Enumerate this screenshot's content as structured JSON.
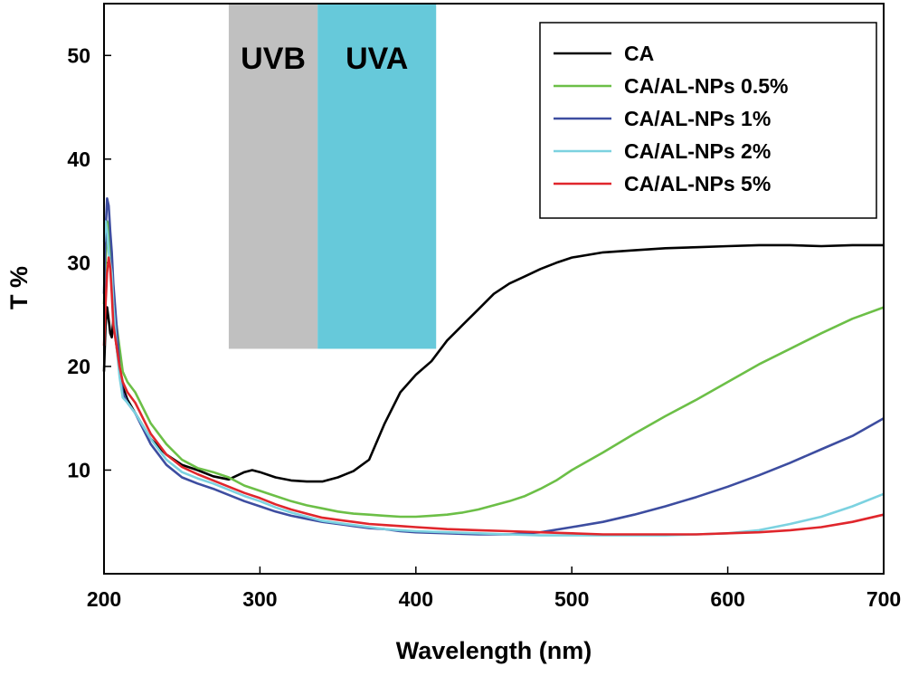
{
  "chart_data": {
    "type": "line",
    "title": "",
    "xlabel": "Wavelength (nm)",
    "ylabel": "T  %",
    "xlim": [
      200,
      700
    ],
    "ylim": [
      0,
      55
    ],
    "xticks": [
      200,
      300,
      400,
      500,
      600,
      700
    ],
    "yticks": [
      10,
      20,
      30,
      40,
      50
    ],
    "legend_position": "top-right",
    "bands": [
      {
        "label": "UVB",
        "x_start": 280,
        "x_end": 337,
        "y_start": 21.7,
        "y_end": 55,
        "color": "#c0c0c0"
      },
      {
        "label": "UVA",
        "x_start": 337,
        "x_end": 413,
        "y_start": 21.7,
        "y_end": 55,
        "color": "#66c9da"
      }
    ],
    "series": [
      {
        "name": "CA",
        "color": "#000000",
        "x": [
          200,
          201,
          202,
          203,
          204,
          205,
          206,
          208,
          210,
          212,
          215,
          220,
          230,
          240,
          250,
          260,
          270,
          280,
          290,
          295,
          300,
          310,
          320,
          330,
          340,
          350,
          360,
          370,
          380,
          390,
          400,
          410,
          420,
          430,
          440,
          450,
          460,
          470,
          480,
          490,
          500,
          520,
          540,
          560,
          580,
          600,
          620,
          640,
          660,
          680,
          700
        ],
        "y": [
          19.5,
          24,
          25.7,
          24.5,
          23.2,
          22.8,
          24.5,
          22,
          19.6,
          18,
          16.8,
          15.5,
          13,
          11.5,
          10.5,
          10,
          9.4,
          9.1,
          9.8,
          10,
          9.8,
          9.3,
          9,
          8.9,
          8.9,
          9.3,
          9.9,
          11,
          14.5,
          17.5,
          19.2,
          20.5,
          22.5,
          24,
          25.5,
          27,
          28,
          28.7,
          29.4,
          30,
          30.5,
          31,
          31.2,
          31.4,
          31.5,
          31.6,
          31.7,
          31.7,
          31.6,
          31.7,
          31.7
        ]
      },
      {
        "name": "CA/AL-NPs 0.5%",
        "color": "#6cbf47",
        "x": [
          200,
          201,
          202,
          203,
          204,
          205,
          206,
          208,
          210,
          212,
          215,
          220,
          230,
          240,
          250,
          260,
          270,
          280,
          290,
          300,
          310,
          320,
          330,
          340,
          350,
          360,
          370,
          380,
          390,
          400,
          410,
          420,
          430,
          440,
          450,
          460,
          470,
          480,
          490,
          500,
          520,
          540,
          560,
          580,
          600,
          620,
          640,
          660,
          680,
          700
        ],
        "y": [
          26,
          30,
          34,
          33.5,
          31.5,
          30,
          26,
          24,
          21.8,
          19.5,
          18.5,
          17.5,
          14.5,
          12.5,
          11,
          10.2,
          9.8,
          9.3,
          8.5,
          8,
          7.5,
          7,
          6.6,
          6.3,
          6,
          5.8,
          5.7,
          5.6,
          5.5,
          5.5,
          5.6,
          5.7,
          5.9,
          6.2,
          6.6,
          7,
          7.5,
          8.2,
          9,
          10,
          11.7,
          13.5,
          15.2,
          16.8,
          18.5,
          20.2,
          21.7,
          23.2,
          24.6,
          25.7
        ]
      },
      {
        "name": "CA/AL-NPs 1%",
        "color": "#3d4da0",
        "x": [
          200,
          201,
          202,
          203,
          204,
          205,
          206,
          208,
          210,
          212,
          215,
          220,
          230,
          240,
          250,
          260,
          270,
          280,
          290,
          300,
          310,
          320,
          330,
          340,
          350,
          360,
          370,
          380,
          390,
          400,
          420,
          440,
          460,
          480,
          500,
          520,
          540,
          560,
          580,
          600,
          620,
          640,
          660,
          680,
          700
        ],
        "y": [
          27,
          33,
          36.2,
          35.5,
          33,
          31,
          28,
          24,
          20,
          17.5,
          16.5,
          15.5,
          12.5,
          10.5,
          9.3,
          8.7,
          8.2,
          7.6,
          7,
          6.5,
          6,
          5.6,
          5.3,
          5,
          4.8,
          4.6,
          4.4,
          4.3,
          4.1,
          4,
          3.9,
          3.8,
          3.8,
          4,
          4.5,
          5,
          5.7,
          6.5,
          7.4,
          8.4,
          9.5,
          10.7,
          12,
          13.3,
          15
        ]
      },
      {
        "name": "CA/AL-NPs 2%",
        "color": "#7cd2e0",
        "x": [
          200,
          201,
          202,
          203,
          204,
          205,
          206,
          208,
          210,
          212,
          215,
          220,
          230,
          240,
          250,
          260,
          270,
          280,
          290,
          300,
          310,
          320,
          330,
          340,
          350,
          360,
          370,
          380,
          390,
          400,
          420,
          440,
          460,
          480,
          500,
          520,
          540,
          560,
          580,
          600,
          620,
          640,
          660,
          680,
          700
        ],
        "y": [
          32,
          34,
          33,
          31,
          30,
          29,
          26,
          22,
          19,
          17,
          16.5,
          15.5,
          13,
          11,
          9.8,
          9.2,
          8.7,
          8.1,
          7.5,
          7,
          6.4,
          5.9,
          5.5,
          5.1,
          4.9,
          4.7,
          4.5,
          4.3,
          4.2,
          4.1,
          4,
          3.9,
          3.8,
          3.7,
          3.7,
          3.7,
          3.7,
          3.7,
          3.8,
          3.9,
          4.2,
          4.8,
          5.5,
          6.5,
          7.7
        ]
      },
      {
        "name": "CA/AL-NPs 5%",
        "color": "#e0262c",
        "x": [
          200,
          201,
          202,
          203,
          204,
          205,
          206,
          208,
          210,
          212,
          215,
          220,
          230,
          240,
          250,
          260,
          270,
          280,
          290,
          300,
          310,
          320,
          330,
          340,
          350,
          360,
          370,
          380,
          390,
          400,
          420,
          440,
          460,
          480,
          500,
          520,
          540,
          560,
          580,
          600,
          620,
          640,
          660,
          680,
          700
        ],
        "y": [
          22,
          26,
          29,
          30.5,
          29.5,
          27,
          24,
          22,
          20,
          18.5,
          17.5,
          16.5,
          13.5,
          11.5,
          10.3,
          9.6,
          9,
          8.4,
          7.8,
          7.3,
          6.7,
          6.2,
          5.8,
          5.4,
          5.2,
          5,
          4.8,
          4.7,
          4.6,
          4.5,
          4.3,
          4.2,
          4.1,
          4,
          3.9,
          3.8,
          3.8,
          3.8,
          3.8,
          3.9,
          4,
          4.2,
          4.5,
          5,
          5.7
        ]
      }
    ]
  }
}
